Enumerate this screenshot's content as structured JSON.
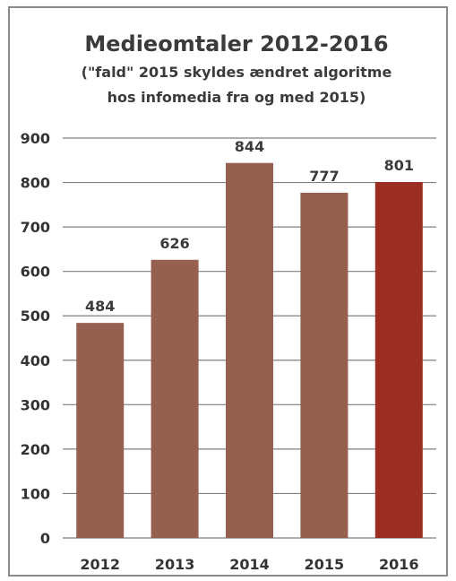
{
  "chart_data": {
    "type": "bar",
    "title": "Medieomtaler 2012-2016",
    "subtitle_lines": [
      "(\"fald\" 2015 skyldes ændret algoritme",
      "hos infomedia fra og med 2015)"
    ],
    "categories": [
      "2012",
      "2013",
      "2014",
      "2015",
      "2016"
    ],
    "values": [
      484,
      626,
      844,
      777,
      801
    ],
    "data_labels": [
      "484",
      "626",
      "844",
      "777",
      "801"
    ],
    "y_ticks": [
      "0",
      "100",
      "200",
      "300",
      "400",
      "500",
      "600",
      "700",
      "800",
      "900"
    ],
    "ylim": [
      0,
      900
    ],
    "grid": true,
    "legend": "none",
    "colors": {
      "bar": "#95604f",
      "highlight_bar": "#9c2d22",
      "highlight_index": 4,
      "grid": "#7f7f7f",
      "text": "#3b3b3b"
    }
  }
}
